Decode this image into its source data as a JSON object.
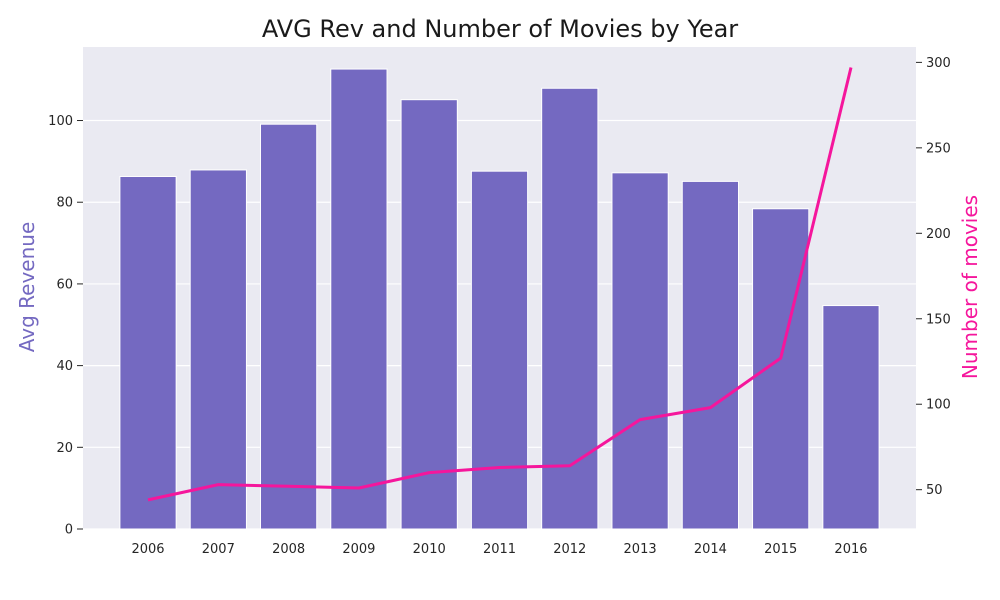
{
  "chart_data": {
    "type": "bar",
    "title": "AVG Rev and Number of Movies by Year",
    "categories": [
      "2006",
      "2007",
      "2008",
      "2009",
      "2010",
      "2011",
      "2012",
      "2013",
      "2014",
      "2015",
      "2016"
    ],
    "series": [
      {
        "axis": "left",
        "type": "bar",
        "values": [
          86.3,
          87.9,
          99.1,
          112.6,
          105.1,
          87.6,
          107.9,
          87.2,
          85.1,
          78.4,
          54.7
        ],
        "color": "#7469c1"
      },
      {
        "axis": "right",
        "type": "line",
        "values": [
          44,
          53,
          52,
          51,
          60,
          63,
          64,
          91,
          98,
          127,
          297
        ],
        "color": "#f5169c"
      }
    ],
    "ylabel": "Avg Revenue",
    "ylabel_right": "Number of movies",
    "ylabel_color": "#7469c1",
    "ylabel_right_color": "#f5169c",
    "ylim": [
      0,
      118
    ],
    "ylim_right": [
      27,
      309
    ],
    "yticks": [
      0,
      20,
      40,
      60,
      80,
      100
    ],
    "yticks_right": [
      50,
      100,
      150,
      200,
      250,
      300
    ],
    "grid": true,
    "background": "#eaeaf2"
  }
}
